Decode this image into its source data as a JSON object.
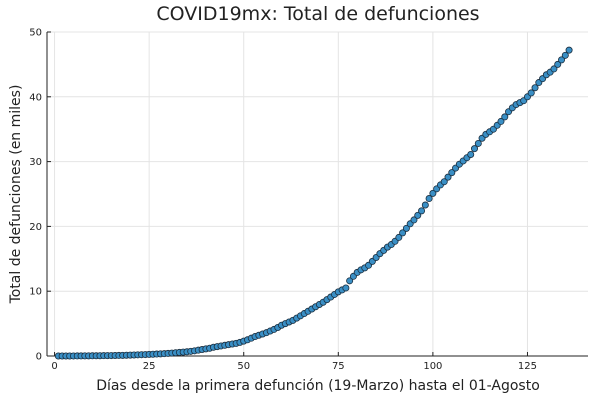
{
  "chart_data": {
    "type": "scatter",
    "title": "COVID19mx: Total de defunciones",
    "xlabel": "Días desde la primera defunción (19-Marzo) hasta el 01-Agosto",
    "ylabel": "Total de defunciones (en miles)",
    "xlim": [
      -2,
      141
    ],
    "ylim": [
      0,
      50
    ],
    "xticks": [
      0,
      25,
      50,
      75,
      100,
      125
    ],
    "yticks": [
      0,
      10,
      20,
      30,
      40,
      50
    ],
    "grid": true,
    "legend": "none",
    "marker_color": "#3a8fc5",
    "marker_edge_color": "#1b2f40",
    "series": [
      {
        "x": [
          1,
          2,
          3,
          4,
          5,
          6,
          7,
          8,
          9,
          10,
          11,
          12,
          13,
          14,
          15,
          16,
          17,
          18,
          19,
          20,
          21,
          22,
          23,
          24,
          25,
          26,
          27,
          28,
          29,
          30,
          31,
          32,
          33,
          34,
          35,
          36,
          37,
          38,
          39,
          40,
          41,
          42,
          43,
          44,
          45,
          46,
          47,
          48,
          49,
          50,
          51,
          52,
          53,
          54,
          55,
          56,
          57,
          58,
          59,
          60,
          61,
          62,
          63,
          64,
          65,
          66,
          67,
          68,
          69,
          70,
          71,
          72,
          73,
          74,
          75,
          76,
          77,
          78,
          79,
          80,
          81,
          82,
          83,
          84,
          85,
          86,
          87,
          88,
          89,
          90,
          91,
          92,
          93,
          94,
          95,
          96,
          97,
          98,
          99,
          100,
          101,
          102,
          103,
          104,
          105,
          106,
          107,
          108,
          109,
          110,
          111,
          112,
          113,
          114,
          115,
          116,
          117,
          118,
          119,
          120,
          121,
          122,
          123,
          124,
          125,
          126,
          127,
          128,
          129,
          130,
          131,
          132,
          133,
          134,
          135,
          136
        ],
        "y": [
          0.001,
          0.002,
          0.003,
          0.005,
          0.008,
          0.012,
          0.016,
          0.02,
          0.025,
          0.03,
          0.035,
          0.042,
          0.05,
          0.058,
          0.066,
          0.075,
          0.09,
          0.1,
          0.12,
          0.14,
          0.16,
          0.18,
          0.2,
          0.22,
          0.25,
          0.27,
          0.3,
          0.33,
          0.36,
          0.4,
          0.45,
          0.5,
          0.55,
          0.6,
          0.65,
          0.72,
          0.8,
          0.9,
          1.0,
          1.1,
          1.2,
          1.35,
          1.45,
          1.55,
          1.65,
          1.75,
          1.85,
          1.95,
          2.1,
          2.3,
          2.5,
          2.75,
          3.0,
          3.2,
          3.4,
          3.6,
          3.85,
          4.1,
          4.4,
          4.75,
          5.0,
          5.25,
          5.5,
          5.85,
          6.2,
          6.55,
          6.9,
          7.25,
          7.6,
          7.95,
          8.3,
          8.7,
          9.1,
          9.5,
          9.9,
          10.2,
          10.5,
          11.6,
          12.3,
          12.9,
          13.3,
          13.6,
          14.0,
          14.6,
          15.2,
          15.8,
          16.3,
          16.8,
          17.2,
          17.7,
          18.3,
          19.0,
          19.7,
          20.4,
          21.0,
          21.7,
          22.4,
          23.3,
          24.3,
          25.1,
          25.8,
          26.4,
          26.9,
          27.6,
          28.3,
          29.0,
          29.6,
          30.1,
          30.6,
          31.1,
          32.0,
          32.8,
          33.6,
          34.2,
          34.6,
          35.0,
          35.6,
          36.2,
          36.9,
          37.7,
          38.3,
          38.8,
          39.1,
          39.4,
          40.0,
          40.6,
          41.4,
          42.2,
          42.8,
          43.4,
          43.8,
          44.3,
          45.0,
          45.7,
          46.4,
          47.2
        ]
      }
    ]
  }
}
